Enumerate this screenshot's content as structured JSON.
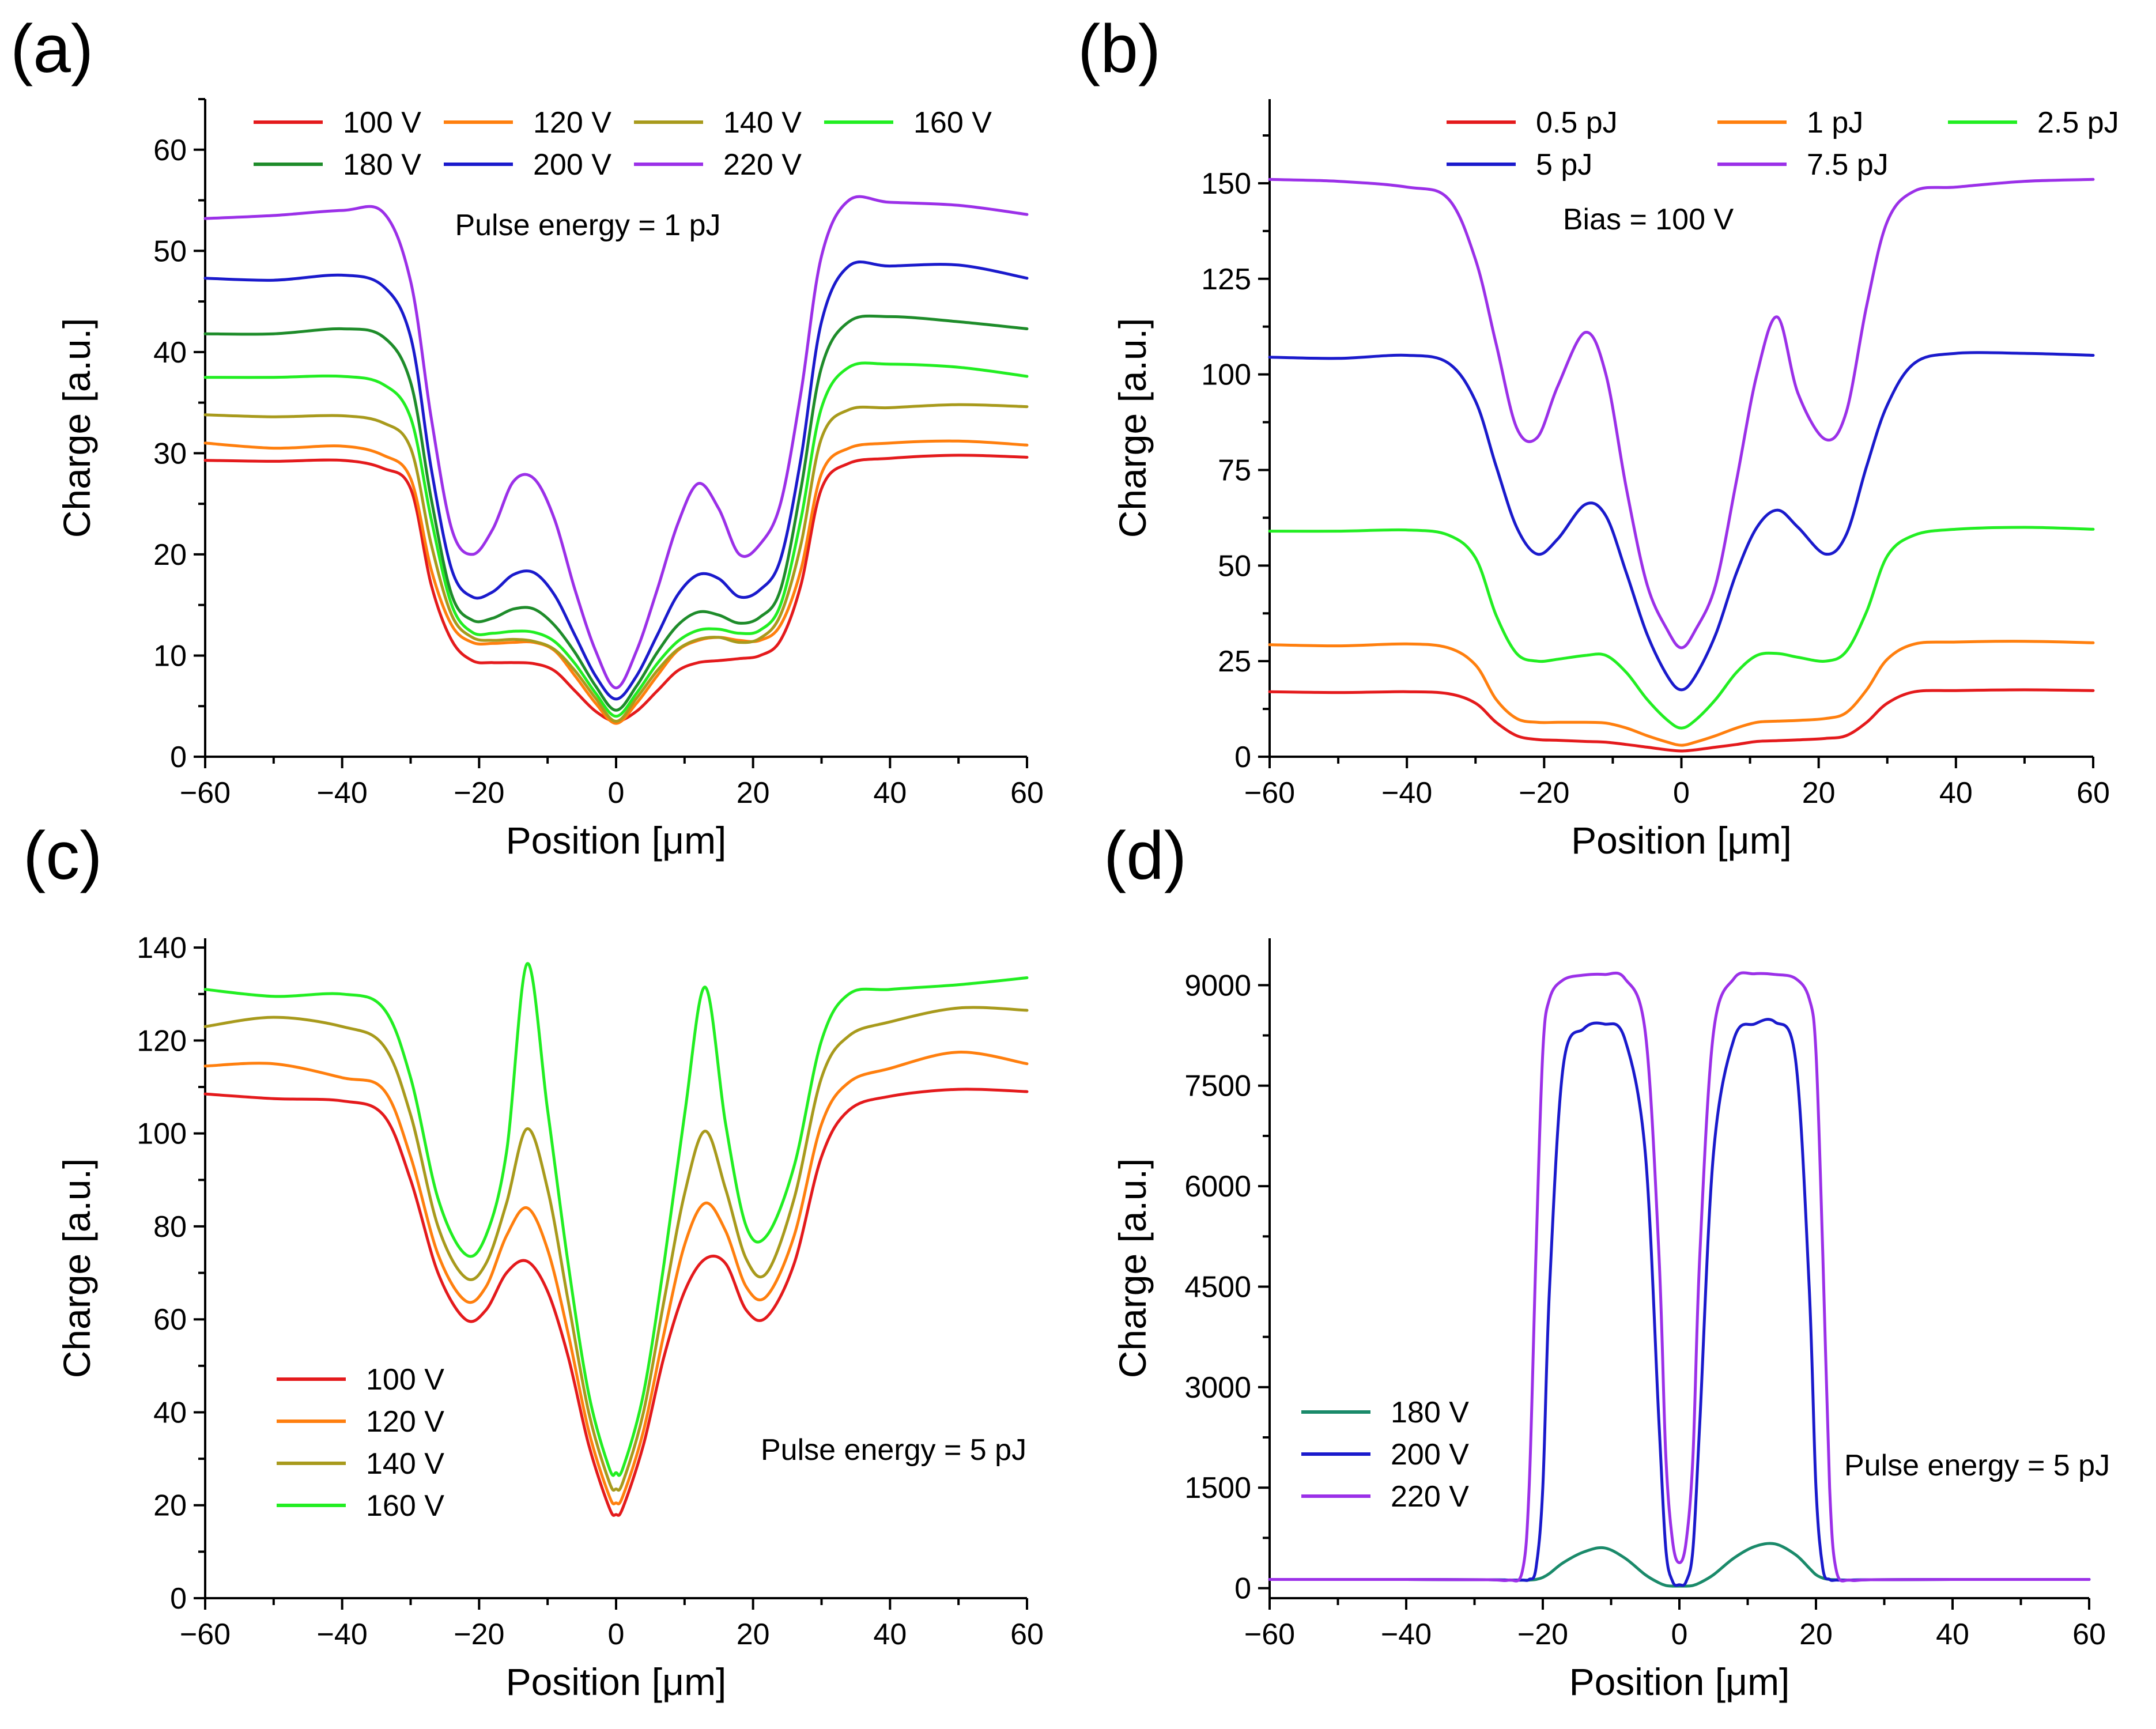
{
  "chart_data": [
    {
      "panel": "(a)",
      "type": "line",
      "xlabel": "Position [μm]",
      "ylabel": "Charge [a.u.]",
      "xlim": [
        -60,
        60
      ],
      "ylim": [
        0,
        65
      ],
      "xticks": [
        -60,
        -40,
        -20,
        0,
        20,
        40,
        60
      ],
      "xtick_labels": [
        "−60",
        "−40",
        "−20",
        "0",
        "20",
        "40",
        "60"
      ],
      "yticks": [
        0,
        10,
        20,
        30,
        40,
        50,
        60
      ],
      "ytick_labels": [
        "0",
        "10",
        "20",
        "30",
        "40",
        "50",
        "60"
      ],
      "annotation": "Pulse energy = 1 pJ",
      "legend_columns": 4,
      "legend_position": "top",
      "x": [
        -60,
        -50,
        -40,
        -34,
        -30,
        -27,
        -24,
        -21,
        -18,
        -15,
        -12,
        -9,
        -6,
        -3,
        0,
        3,
        6,
        9,
        12,
        15,
        18,
        21,
        24,
        27,
        30,
        34,
        40,
        50,
        60
      ],
      "series": [
        {
          "name": "100 V",
          "color": "#e41a1c",
          "values": [
            29.3,
            29.2,
            29.3,
            28.5,
            26.5,
            17.0,
            11.5,
            9.5,
            9.3,
            9.3,
            9.2,
            8.5,
            6.5,
            4.5,
            3.5,
            4.5,
            6.5,
            8.5,
            9.3,
            9.5,
            9.7,
            10.0,
            11.5,
            17.0,
            26.5,
            29.0,
            29.5,
            29.8,
            29.6
          ]
        },
        {
          "name": "120 V",
          "color": "#ff7f0e",
          "values": [
            31.0,
            30.5,
            30.7,
            29.8,
            27.5,
            18.5,
            13.0,
            11.3,
            11.2,
            11.3,
            11.3,
            10.5,
            8.0,
            5.3,
            3.3,
            5.3,
            8.0,
            10.5,
            11.5,
            11.8,
            11.5,
            11.5,
            13.0,
            18.5,
            28.0,
            30.5,
            31.0,
            31.2,
            30.8
          ]
        },
        {
          "name": "140 V",
          "color": "#a89a1c",
          "values": [
            33.8,
            33.6,
            33.7,
            33.0,
            30.5,
            21.0,
            14.0,
            11.8,
            11.5,
            11.6,
            11.4,
            10.6,
            8.5,
            5.8,
            3.5,
            5.8,
            8.5,
            10.6,
            11.6,
            11.8,
            11.3,
            11.7,
            14.0,
            21.0,
            31.5,
            34.3,
            34.5,
            34.8,
            34.6
          ]
        },
        {
          "name": "160 V",
          "color": "#22ee22",
          "values": [
            37.5,
            37.5,
            37.6,
            36.8,
            33.5,
            23.5,
            15.0,
            12.3,
            12.2,
            12.4,
            12.3,
            11.4,
            9.2,
            6.3,
            4.0,
            6.3,
            9.2,
            11.4,
            12.5,
            12.6,
            12.2,
            12.5,
            15.0,
            23.5,
            34.5,
            38.5,
            38.8,
            38.5,
            37.6
          ]
        },
        {
          "name": "180 V",
          "color": "#1e8c2a",
          "values": [
            41.8,
            41.8,
            42.3,
            41.5,
            37.0,
            25.5,
            16.0,
            13.5,
            13.7,
            14.6,
            14.6,
            13.0,
            10.3,
            7.0,
            4.6,
            7.0,
            10.3,
            13.0,
            14.3,
            14.0,
            13.2,
            13.8,
            16.5,
            26.5,
            38.5,
            43.0,
            43.5,
            43.0,
            42.3
          ]
        },
        {
          "name": "200 V",
          "color": "#1a1acc",
          "values": [
            47.3,
            47.1,
            47.6,
            46.5,
            41.5,
            28.5,
            18.5,
            15.8,
            16.3,
            18.0,
            18.2,
            16.0,
            12.0,
            8.0,
            5.7,
            8.0,
            12.0,
            16.0,
            18.0,
            17.6,
            15.8,
            16.5,
            19.5,
            29.5,
            43.0,
            48.5,
            48.5,
            48.6,
            47.3
          ]
        },
        {
          "name": "220 V",
          "color": "#9b30e8",
          "values": [
            53.2,
            53.5,
            54.0,
            53.8,
            47.0,
            33.5,
            22.5,
            20.0,
            22.5,
            27.2,
            27.5,
            23.5,
            16.5,
            10.5,
            6.8,
            10.5,
            16.5,
            23.0,
            27.0,
            24.5,
            20.0,
            21.0,
            25.0,
            36.0,
            49.5,
            55.0,
            54.8,
            54.5,
            53.6
          ]
        }
      ]
    },
    {
      "panel": "(b)",
      "type": "line",
      "xlabel": "Position [μm]",
      "ylabel": "Charge [a.u.]",
      "xlim": [
        -60,
        60
      ],
      "ylim": [
        0,
        172
      ],
      "xticks": [
        -60,
        -40,
        -20,
        0,
        20,
        40,
        60
      ],
      "xtick_labels": [
        "−60",
        "−40",
        "−20",
        "0",
        "20",
        "40",
        "60"
      ],
      "yticks": [
        0,
        25,
        50,
        75,
        100,
        125,
        150
      ],
      "ytick_labels": [
        "0",
        "25",
        "50",
        "75",
        "100",
        "125",
        "150"
      ],
      "annotation": "Bias = 100 V",
      "legend_columns": 3,
      "legend_position": "top",
      "x": [
        -60,
        -50,
        -40,
        -34,
        -30,
        -27,
        -24,
        -21,
        -18,
        -14,
        -11,
        -8,
        -5,
        -2,
        0,
        2,
        5,
        8,
        11,
        14,
        17,
        21,
        24,
        27,
        30,
        34,
        40,
        50,
        60
      ],
      "series": [
        {
          "name": "0.5 pJ",
          "color": "#e41a1c",
          "values": [
            17.0,
            16.8,
            17.0,
            16.5,
            14.0,
            9.0,
            5.5,
            4.5,
            4.3,
            4.0,
            3.8,
            3.2,
            2.5,
            1.8,
            1.5,
            1.8,
            2.5,
            3.2,
            4.0,
            4.2,
            4.4,
            4.8,
            5.5,
            9.0,
            14.0,
            17.0,
            17.3,
            17.5,
            17.3
          ]
        },
        {
          "name": "1 pJ",
          "color": "#ff7f0e",
          "values": [
            29.3,
            29.0,
            29.5,
            28.5,
            24.0,
            15.0,
            10.0,
            9.0,
            9.0,
            9.0,
            8.8,
            7.5,
            5.5,
            3.8,
            3.0,
            3.8,
            5.5,
            7.5,
            9.0,
            9.3,
            9.5,
            10.0,
            11.5,
            17.5,
            25.5,
            29.5,
            30.0,
            30.2,
            29.8
          ]
        },
        {
          "name": "2.5 pJ",
          "color": "#22ee22",
          "values": [
            59.0,
            59.0,
            59.3,
            58.0,
            52.0,
            37.0,
            27.0,
            25.0,
            25.5,
            26.5,
            26.5,
            22.0,
            15.0,
            9.5,
            7.5,
            9.5,
            15.0,
            22.0,
            26.5,
            27.0,
            26.0,
            25.0,
            27.5,
            38.0,
            52.5,
            58.0,
            59.5,
            60.0,
            59.5
          ]
        },
        {
          "name": "5 pJ",
          "color": "#1a1acc",
          "values": [
            104.5,
            104.2,
            105.0,
            103.0,
            93.0,
            76.0,
            60.0,
            53.0,
            57.0,
            66.0,
            63.0,
            48.0,
            32.0,
            21.0,
            17.5,
            21.0,
            32.0,
            48.0,
            60.0,
            64.5,
            60.0,
            53.0,
            58.0,
            76.0,
            92.0,
            103.0,
            105.5,
            105.5,
            105.0
          ]
        },
        {
          "name": "7.5 pJ",
          "color": "#9b30e8",
          "values": [
            151.0,
            150.5,
            149.0,
            146.0,
            130.0,
            108.0,
            86.0,
            83.5,
            97.0,
            111.0,
            100.0,
            70.0,
            45.0,
            33.0,
            28.5,
            33.0,
            45.0,
            72.0,
            100.0,
            115.0,
            95.0,
            83.0,
            90.0,
            118.0,
            140.0,
            148.0,
            149.0,
            150.5,
            151.0
          ]
        }
      ]
    },
    {
      "panel": "(c)",
      "type": "line",
      "xlabel": "Position [μm]",
      "ylabel": "Charge [a.u.]",
      "xlim": [
        -60,
        60
      ],
      "ylim": [
        0,
        142
      ],
      "xticks": [
        -60,
        -40,
        -20,
        0,
        20,
        40,
        60
      ],
      "xtick_labels": [
        "−60",
        "−40",
        "−20",
        "0",
        "20",
        "40",
        "60"
      ],
      "yticks": [
        0,
        20,
        40,
        60,
        80,
        100,
        120,
        140
      ],
      "ytick_labels": [
        "0",
        "20",
        "40",
        "60",
        "80",
        "100",
        "120",
        "140"
      ],
      "annotation": "Pulse energy = 5 pJ",
      "legend_columns": 1,
      "legend_position": "lower-left",
      "x": [
        -60,
        -50,
        -40,
        -34,
        -30,
        -26,
        -22,
        -19,
        -16,
        -13,
        -10,
        -7,
        -4,
        -1,
        0,
        1,
        4,
        7,
        10,
        13,
        16,
        19,
        22,
        26,
        30,
        34,
        40,
        50,
        60
      ],
      "series": [
        {
          "name": "100 V",
          "color": "#e41a1c",
          "values": [
            108.5,
            107.5,
            107.0,
            104.0,
            90.0,
            70.0,
            60.0,
            62.0,
            70.0,
            72.5,
            66.0,
            52.0,
            33.0,
            19.5,
            18.0,
            19.5,
            33.0,
            52.0,
            66.0,
            73.0,
            72.0,
            62.0,
            60.5,
            72.0,
            95.0,
            105.0,
            108.0,
            109.5,
            109.0
          ]
        },
        {
          "name": "120 V",
          "color": "#ff7f0e",
          "values": [
            114.5,
            115.0,
            112.0,
            109.5,
            95.0,
            74.0,
            64.0,
            67.0,
            78.0,
            84.0,
            75.0,
            57.0,
            36.0,
            22.0,
            20.5,
            22.0,
            36.0,
            57.0,
            76.0,
            85.0,
            79.0,
            67.0,
            65.0,
            78.0,
            102.0,
            111.0,
            114.0,
            117.5,
            115.0
          ]
        },
        {
          "name": "140 V",
          "color": "#a89a1c",
          "values": [
            123.0,
            125.0,
            123.0,
            119.0,
            104.0,
            80.0,
            69.0,
            72.0,
            85.0,
            101.0,
            88.0,
            64.0,
            40.0,
            25.0,
            23.5,
            25.0,
            40.0,
            64.0,
            87.0,
            100.5,
            88.0,
            73.0,
            70.0,
            86.0,
            112.0,
            121.0,
            124.0,
            127.0,
            126.5
          ]
        },
        {
          "name": "160 V",
          "color": "#22ee22",
          "values": [
            131.0,
            129.5,
            130.0,
            127.0,
            112.0,
            86.0,
            74.0,
            78.0,
            96.0,
            136.5,
            105.0,
            72.0,
            44.0,
            28.0,
            27.0,
            28.0,
            44.0,
            72.0,
            104.0,
            131.5,
            102.0,
            80.0,
            78.0,
            93.0,
            120.0,
            130.0,
            131.0,
            132.0,
            133.5
          ]
        }
      ]
    },
    {
      "panel": "(d)",
      "type": "line",
      "xlabel": "Position [μm]",
      "ylabel": "Charge [a.u.]",
      "xlim": [
        -60,
        60
      ],
      "ylim": [
        -150,
        9700
      ],
      "xticks": [
        -60,
        -40,
        -20,
        0,
        20,
        40,
        60
      ],
      "xtick_labels": [
        "−60",
        "−40",
        "−20",
        "0",
        "20",
        "40",
        "60"
      ],
      "yticks": [
        0,
        1500,
        3000,
        4500,
        6000,
        7500,
        9000
      ],
      "ytick_labels": [
        "0",
        "1500",
        "3000",
        "4500",
        "6000",
        "7500",
        "9000"
      ],
      "annotation": "Pulse energy = 5 pJ",
      "legend_columns": 1,
      "legend_position": "lower-left",
      "x": [
        -60,
        -40,
        -28,
        -25,
        -23,
        -22,
        -21,
        -20,
        -19,
        -17,
        -14,
        -11,
        -8,
        -5,
        -3,
        -2,
        -1,
        0,
        1,
        2,
        3,
        5,
        8,
        11,
        14,
        17,
        19,
        20,
        21,
        22,
        23,
        25,
        28,
        40,
        60
      ],
      "series": [
        {
          "name": "180 V",
          "color": "#1a8a6a",
          "values": [
            130,
            130,
            125,
            120,
            118,
            120,
            130,
            160,
            220,
            380,
            540,
            600,
            450,
            200,
            80,
            40,
            30,
            30,
            30,
            40,
            80,
            200,
            450,
            620,
            660,
            500,
            300,
            200,
            150,
            130,
            125,
            120,
            125,
            130,
            130
          ]
        },
        {
          "name": "200 V",
          "color": "#1a1acc",
          "values": [
            130,
            130,
            125,
            120,
            120,
            130,
            300,
            1500,
            4500,
            7800,
            8350,
            8420,
            8200,
            6500,
            2500,
            600,
            100,
            50,
            100,
            600,
            2500,
            6500,
            8200,
            8420,
            8450,
            7900,
            4500,
            1500,
            300,
            130,
            120,
            120,
            125,
            130,
            130
          ]
        },
        {
          "name": "220 V",
          "color": "#9b30e8",
          "values": [
            130,
            130,
            125,
            120,
            250,
            1500,
            5000,
            8000,
            8800,
            9080,
            9150,
            9160,
            9100,
            8300,
            5000,
            2000,
            700,
            380,
            700,
            2000,
            5000,
            8300,
            9100,
            9170,
            9160,
            9100,
            8800,
            8000,
            5000,
            1500,
            250,
            120,
            125,
            130,
            130
          ]
        }
      ]
    }
  ]
}
